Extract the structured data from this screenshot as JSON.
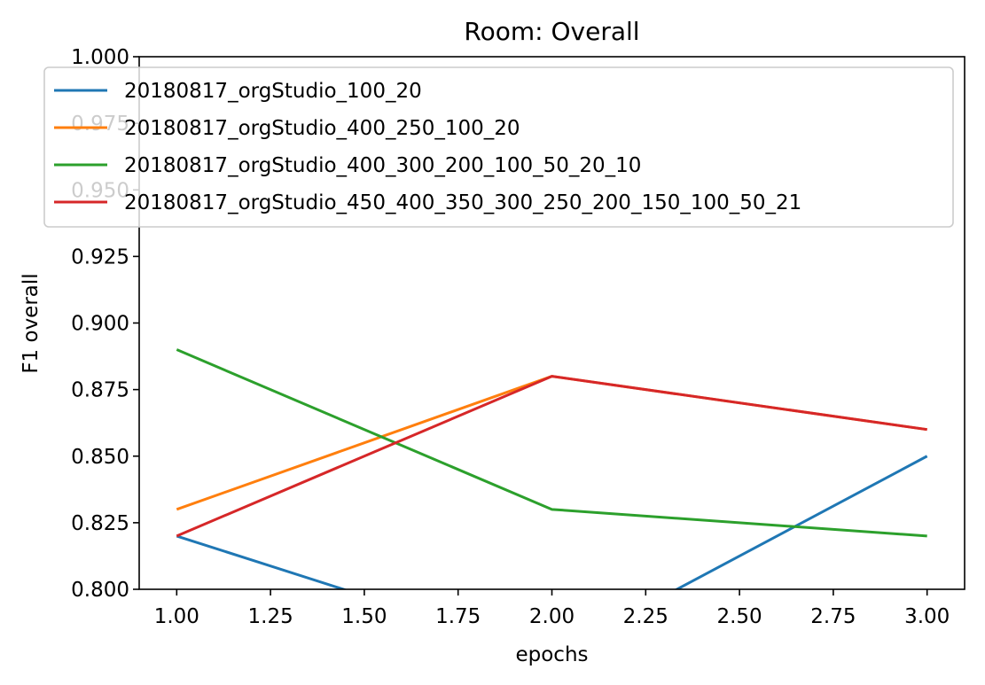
{
  "chart_data": {
    "type": "line",
    "title": "Room: Overall",
    "xlabel": "epochs",
    "ylabel": "F1 overall",
    "xlim": [
      0.9,
      3.1
    ],
    "ylim": [
      0.8,
      1.0
    ],
    "xticks": [
      1.0,
      1.25,
      1.5,
      1.75,
      2.0,
      2.25,
      2.5,
      2.75,
      3.0
    ],
    "xtick_labels": [
      "1.00",
      "1.25",
      "1.50",
      "1.75",
      "2.00",
      "2.25",
      "2.50",
      "2.75",
      "3.00"
    ],
    "yticks": [
      0.8,
      0.825,
      0.85,
      0.875,
      0.9,
      0.925,
      0.95,
      0.975,
      1.0
    ],
    "ytick_labels": [
      "0.800",
      "0.825",
      "0.850",
      "0.875",
      "0.900",
      "0.925",
      "0.950",
      "0.975",
      "1.000"
    ],
    "grid": false,
    "legend_position": "upper-left",
    "x": [
      1,
      2,
      3
    ],
    "series": [
      {
        "name": "20180817_orgStudio_100_20",
        "color": "#1f77b4",
        "values": [
          0.82,
          0.775,
          0.85
        ]
      },
      {
        "name": "20180817_orgStudio_400_250_100_20",
        "color": "#ff7f0e",
        "values": [
          0.83,
          0.88,
          0.86
        ]
      },
      {
        "name": "20180817_orgStudio_400_300_200_100_50_20_10",
        "color": "#2ca02c",
        "values": [
          0.89,
          0.83,
          0.82
        ]
      },
      {
        "name": "20180817_orgStudio_450_400_350_300_250_200_150_100_50_21",
        "color": "#d62728",
        "values": [
          0.82,
          0.88,
          0.86
        ]
      }
    ]
  }
}
